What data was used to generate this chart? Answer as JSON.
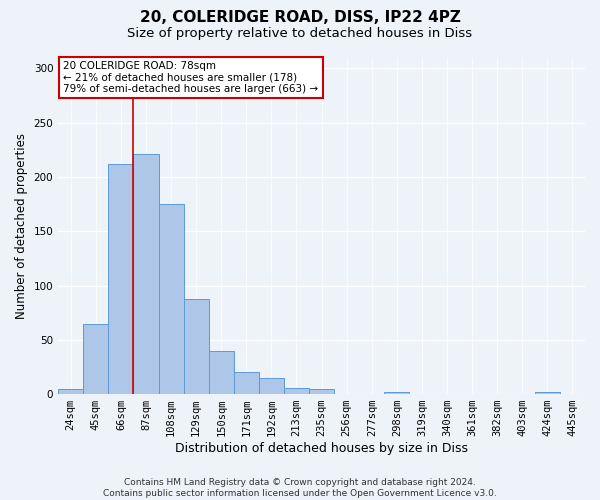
{
  "title1": "20, COLERIDGE ROAD, DISS, IP22 4PZ",
  "title2": "Size of property relative to detached houses in Diss",
  "xlabel": "Distribution of detached houses by size in Diss",
  "ylabel": "Number of detached properties",
  "categories": [
    "24sqm",
    "45sqm",
    "66sqm",
    "87sqm",
    "108sqm",
    "129sqm",
    "150sqm",
    "171sqm",
    "192sqm",
    "213sqm",
    "235sqm",
    "256sqm",
    "277sqm",
    "298sqm",
    "319sqm",
    "340sqm",
    "361sqm",
    "382sqm",
    "403sqm",
    "424sqm",
    "445sqm"
  ],
  "values": [
    5,
    65,
    212,
    221,
    175,
    88,
    40,
    20,
    15,
    6,
    5,
    0,
    0,
    2,
    0,
    0,
    0,
    0,
    0,
    2,
    0
  ],
  "bar_color": "#aec6e8",
  "bar_edge_color": "#5b9bd5",
  "property_line_x": 2.5,
  "property_label": "20 COLERIDGE ROAD: 78sqm",
  "annot_line1": "← 21% of detached houses are smaller (178)",
  "annot_line2": "79% of semi-detached houses are larger (663) →",
  "annot_box_color": "#ffffff",
  "annot_box_edge_color": "#cc0000",
  "vline_color": "#cc0000",
  "ylim": [
    0,
    310
  ],
  "yticks": [
    0,
    50,
    100,
    150,
    200,
    250,
    300
  ],
  "footer1": "Contains HM Land Registry data © Crown copyright and database right 2024.",
  "footer2": "Contains public sector information licensed under the Open Government Licence v3.0.",
  "background_color": "#eef2f9",
  "plot_background": "#eef2f9",
  "grid_color": "#ffffff",
  "title_fontsize": 11,
  "subtitle_fontsize": 9.5,
  "axis_label_fontsize": 8.5,
  "tick_fontsize": 7.5,
  "annot_fontsize": 7.5,
  "footer_fontsize": 6.5
}
